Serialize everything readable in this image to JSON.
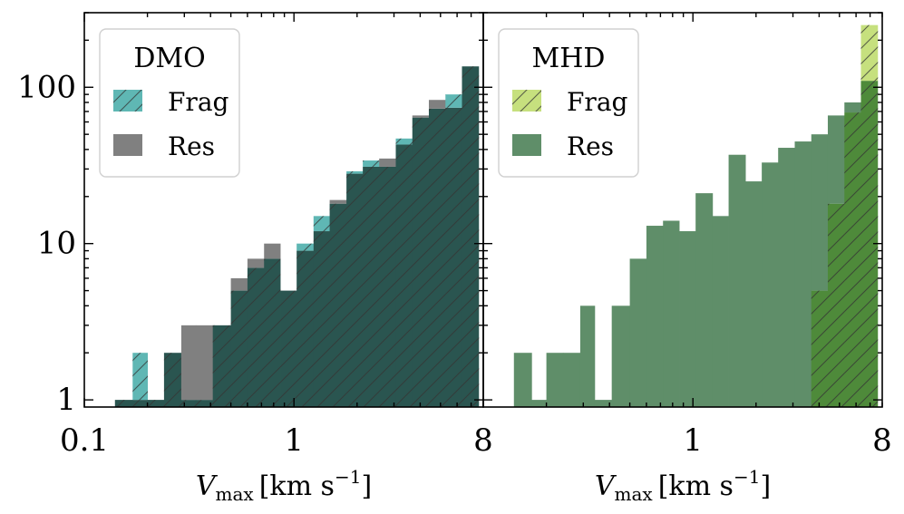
{
  "figure": {
    "ylabel": "",
    "colors": {
      "frag_dmo": "#5fb7b4",
      "res_dmo": "#808080",
      "overlap_dmo": "#2a5550",
      "frag_mhd": "#c6e07e",
      "res_mhd": "#5f8e69",
      "overlap_mhd": "#4e8a3a",
      "hatch": "#333333"
    }
  },
  "chart_data": [
    {
      "type": "bar",
      "panel": "DMO",
      "legend_title": "DMO",
      "legend_entries": [
        "Frag",
        "Res"
      ],
      "legend_position": "top-left",
      "x_scale": "log",
      "y_scale": "log",
      "xlim": [
        0.1,
        8
      ],
      "ylim": [
        0.9,
        300
      ],
      "xticks": [
        {
          "value": 0.1,
          "label": "0.1"
        },
        {
          "value": 1,
          "label": "1"
        },
        {
          "value": 8,
          "label": "8"
        }
      ],
      "yticks": [
        {
          "value": 1,
          "label": "1"
        },
        {
          "value": 10,
          "label": "10"
        },
        {
          "value": 100,
          "label": "100"
        }
      ],
      "xlabel_main": "V",
      "xlabel_sub": "max",
      "xlabel_unit": "[km s",
      "xlabel_exp": "−1",
      "xlabel_close": "]",
      "bin_edges": [
        0.14,
        0.17,
        0.2,
        0.24,
        0.29,
        0.34,
        0.41,
        0.5,
        0.6,
        0.72,
        0.86,
        1.03,
        1.24,
        1.48,
        1.78,
        2.13,
        2.55,
        3.06,
        3.67,
        4.4,
        5.28,
        6.33,
        7.6
      ],
      "series": [
        {
          "name": "Frag",
          "values": [
            1,
            2,
            1,
            2,
            1,
            1,
            3,
            5,
            7,
            8,
            5,
            10,
            15,
            18,
            29,
            34,
            31,
            47,
            64,
            73,
            90,
            136
          ]
        },
        {
          "name": "Res",
          "values": [
            1,
            1,
            1,
            2,
            3,
            3,
            3,
            6,
            8,
            10,
            5,
            9,
            12,
            19,
            28,
            31,
            35,
            43,
            66,
            83,
            74,
            136
          ]
        }
      ]
    },
    {
      "type": "bar",
      "panel": "MHD",
      "legend_title": "MHD",
      "legend_entries": [
        "Frag",
        "Res"
      ],
      "legend_position": "top-left",
      "x_scale": "log",
      "y_scale": "log",
      "xlim": [
        0.1,
        8
      ],
      "ylim": [
        0.9,
        300
      ],
      "xticks": [
        {
          "value": 1,
          "label": "1"
        },
        {
          "value": 8,
          "label": "8"
        }
      ],
      "yticks": [],
      "xlabel_main": "V",
      "xlabel_sub": "max",
      "xlabel_unit": "[km s",
      "xlabel_exp": "−1",
      "xlabel_close": "]",
      "bin_edges": [
        0.14,
        0.17,
        0.2,
        0.24,
        0.29,
        0.34,
        0.41,
        0.5,
        0.6,
        0.72,
        0.86,
        1.03,
        1.24,
        1.48,
        1.78,
        2.13,
        2.55,
        3.06,
        3.67,
        4.4,
        5.28,
        6.33,
        7.6
      ],
      "series": [
        {
          "name": "Frag",
          "values": [
            0,
            0,
            0,
            0,
            0,
            0,
            0,
            0,
            0,
            0,
            0,
            0,
            0,
            0,
            0,
            0,
            0,
            0,
            5,
            18,
            69,
            250
          ]
        },
        {
          "name": "Res",
          "values": [
            2,
            1,
            2,
            2,
            4,
            1,
            4,
            8,
            13,
            14,
            12,
            21,
            15,
            37,
            25,
            33,
            41,
            45,
            50,
            66,
            80,
            110
          ]
        }
      ]
    }
  ]
}
